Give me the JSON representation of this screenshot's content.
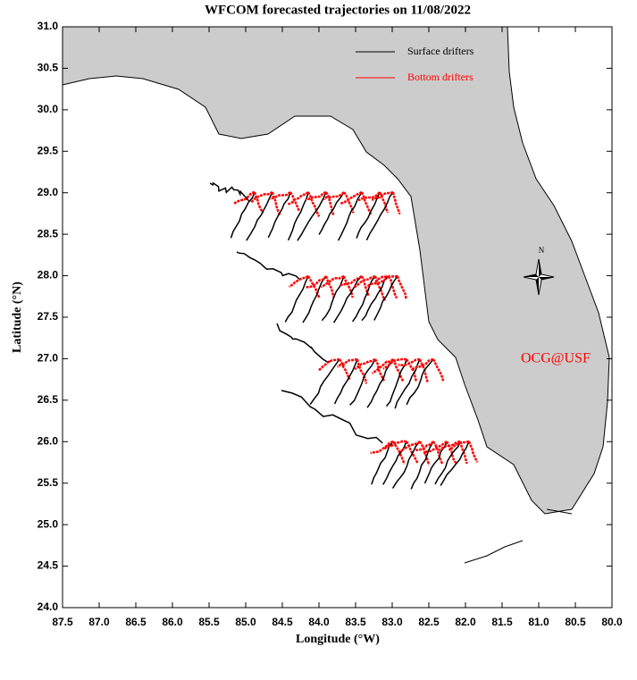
{
  "map": {
    "title": "WFCOM forecasted trajectories on 11/08/2022",
    "xlabel": "Longitude (°W)",
    "ylabel": "Latitude (°N)",
    "xlim": [
      87.5,
      80.0
    ],
    "ylim": [
      24.0,
      31.0
    ],
    "xticks": [
      87.5,
      {
        "value": 87,
        "label": "87.0"
      },
      86.5,
      {
        "value": 86,
        "label": "86.0"
      },
      85.5,
      {
        "value": 85,
        "label": "85.0"
      },
      84.5,
      {
        "value": 84,
        "label": "84.0"
      },
      83.5,
      {
        "value": 83,
        "label": "83.0"
      },
      82.5,
      {
        "value": 82,
        "label": "82.0"
      },
      81.5,
      {
        "value": 81,
        "label": "81.0"
      },
      80.5,
      {
        "value": 80,
        "label": "80.0"
      }
    ],
    "yticks": [
      {
        "value": 24,
        "label": "24.0"
      },
      24.5,
      {
        "value": 25,
        "label": "25.0"
      },
      25.5,
      {
        "value": 26,
        "label": "26.0"
      },
      26.5,
      {
        "value": 27,
        "label": "27.0"
      },
      27.5,
      {
        "value": 28,
        "label": "28.0"
      },
      28.5,
      {
        "value": 29,
        "label": "29.0"
      },
      29.5,
      {
        "value": 30,
        "label": "30.0"
      },
      30.5,
      {
        "value": 31,
        "label": "31.0"
      }
    ],
    "series": [
      {
        "name": "Surface drifters",
        "color": "#000000"
      },
      {
        "name": "Bottom drifters",
        "color": "#ff0000"
      }
    ],
    "annotation": "OCG@USF",
    "compass": "N"
  }
}
